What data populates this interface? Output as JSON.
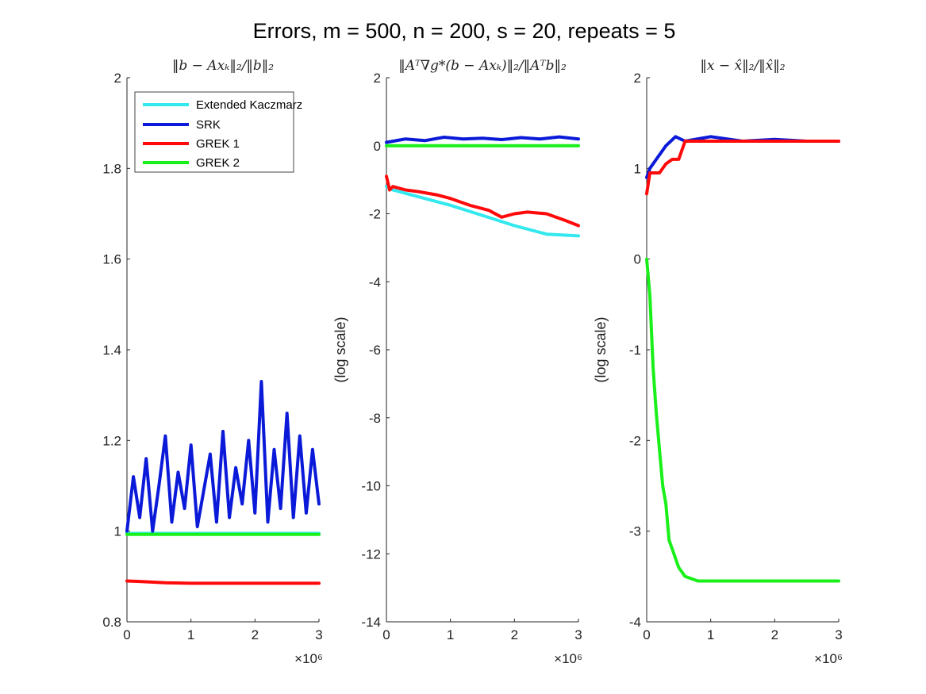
{
  "figure": {
    "title": "Errors, m = 500, n = 200, s = 20, repeats = 5"
  },
  "legend": {
    "location": "top-left of first panel",
    "entries": [
      {
        "label": "Extended Kaczmarz",
        "color": "#33e8ee"
      },
      {
        "label": "SRK",
        "color": "#0a1ad8"
      },
      {
        "label": "GREK 1",
        "color": "#ff0a0a"
      },
      {
        "label": "GREK 2",
        "color": "#19f019"
      }
    ]
  },
  "colors": {
    "ek": "#33e8ee",
    "srk": "#0a1ad8",
    "grek1": "#ff0a0a",
    "grek2": "#19f019"
  },
  "chart_data": [
    {
      "type": "line",
      "title": "‖b − Axₖ‖₂/‖b‖₂",
      "xlabel": "",
      "ylabel": "",
      "x_exponent": "×10⁶",
      "xlim": [
        0,
        3
      ],
      "ylim": [
        0.8,
        2
      ],
      "xticks": [
        "0",
        "1",
        "2",
        "3"
      ],
      "yticks": [
        "0.8",
        "1",
        "1.2",
        "1.4",
        "1.6",
        "1.8",
        "2"
      ],
      "grid": false,
      "series": [
        {
          "name": "GREK 1",
          "x": [
            0,
            0.2,
            0.6,
            1.0,
            2.0,
            3.0
          ],
          "y": [
            0.89,
            0.889,
            0.886,
            0.885,
            0.885,
            0.885
          ]
        },
        {
          "name": "Extended Kaczmarz",
          "x": [
            0,
            3.0
          ],
          "y": [
            0.995,
            0.995
          ]
        },
        {
          "name": "SRK",
          "x": [
            0,
            0.1,
            0.2,
            0.3,
            0.4,
            0.5,
            0.6,
            0.7,
            0.8,
            0.9,
            1.0,
            1.1,
            1.2,
            1.3,
            1.4,
            1.5,
            1.6,
            1.7,
            1.8,
            1.9,
            2.0,
            2.1,
            2.2,
            2.3,
            2.4,
            2.5,
            2.6,
            2.7,
            2.8,
            2.9,
            3.0
          ],
          "y": [
            1.0,
            1.12,
            1.03,
            1.16,
            1.0,
            1.1,
            1.21,
            1.02,
            1.13,
            1.05,
            1.19,
            1.01,
            1.09,
            1.17,
            1.02,
            1.22,
            1.03,
            1.14,
            1.06,
            1.2,
            1.04,
            1.33,
            1.02,
            1.18,
            1.05,
            1.26,
            1.03,
            1.21,
            1.04,
            1.18,
            1.06
          ]
        },
        {
          "name": "GREK 2",
          "x": [
            0,
            3.0
          ],
          "y": [
            0.993,
            0.993
          ]
        }
      ]
    },
    {
      "type": "line",
      "title": "‖Aᵀ∇g*(b − Axₖ)‖₂/‖Aᵀb‖₂",
      "xlabel": "",
      "ylabel": "(log scale)",
      "x_exponent": "×10⁶",
      "xlim": [
        0,
        3
      ],
      "ylim": [
        -14,
        2
      ],
      "xticks": [
        "0",
        "1",
        "2",
        "3"
      ],
      "yticks": [
        "-14",
        "-12",
        "-10",
        "-8",
        "-6",
        "-4",
        "-2",
        "0",
        "2"
      ],
      "grid": false,
      "series": [
        {
          "name": "Extended Kaczmarz",
          "x": [
            0,
            0.1,
            0.2,
            0.5,
            1.0,
            1.5,
            2.0,
            2.5,
            3.0
          ],
          "y": [
            -1.2,
            -1.3,
            -1.35,
            -1.5,
            -1.75,
            -2.05,
            -2.35,
            -2.6,
            -2.65
          ]
        },
        {
          "name": "GREK 1",
          "x": [
            0,
            0.05,
            0.1,
            0.3,
            0.5,
            0.8,
            1.0,
            1.3,
            1.6,
            1.8,
            2.0,
            2.2,
            2.5,
            2.8,
            3.0
          ],
          "y": [
            -0.9,
            -1.3,
            -1.2,
            -1.3,
            -1.35,
            -1.45,
            -1.55,
            -1.75,
            -1.9,
            -2.1,
            -2.0,
            -1.95,
            -2.0,
            -2.2,
            -2.35
          ]
        },
        {
          "name": "SRK",
          "x": [
            0,
            0.3,
            0.6,
            0.9,
            1.2,
            1.5,
            1.8,
            2.1,
            2.4,
            2.7,
            3.0
          ],
          "y": [
            0.1,
            0.2,
            0.15,
            0.25,
            0.2,
            0.22,
            0.18,
            0.24,
            0.2,
            0.26,
            0.2
          ]
        },
        {
          "name": "GREK 2",
          "x": [
            0,
            3.0
          ],
          "y": [
            0.0,
            0.0
          ]
        }
      ]
    },
    {
      "type": "line",
      "title": "‖x − x̂‖₂/‖x̂‖₂",
      "xlabel": "",
      "ylabel": "(log scale)",
      "x_exponent": "×10⁶",
      "xlim": [
        0,
        3
      ],
      "ylim": [
        -4,
        2
      ],
      "xticks": [
        "0",
        "1",
        "2",
        "3"
      ],
      "yticks": [
        "-4",
        "-3",
        "-2",
        "-1",
        "0",
        "1",
        "2"
      ],
      "grid": false,
      "series": [
        {
          "name": "SRK",
          "x": [
            0,
            0.05,
            0.15,
            0.3,
            0.45,
            0.6,
            1.0,
            1.5,
            2.0,
            2.5,
            3.0
          ],
          "y": [
            0.9,
            1.0,
            1.1,
            1.25,
            1.35,
            1.3,
            1.35,
            1.3,
            1.32,
            1.3,
            1.3
          ]
        },
        {
          "name": "GREK 1",
          "x": [
            0,
            0.05,
            0.1,
            0.2,
            0.3,
            0.4,
            0.5,
            0.6,
            1.0,
            2.0,
            3.0
          ],
          "y": [
            0.72,
            0.95,
            0.95,
            0.95,
            1.05,
            1.1,
            1.1,
            1.3,
            1.3,
            1.3,
            1.3
          ]
        },
        {
          "name": "GREK 2",
          "x": [
            0,
            0.05,
            0.1,
            0.15,
            0.2,
            0.25,
            0.3,
            0.35,
            0.4,
            0.5,
            0.6,
            0.8,
            1.0,
            1.5,
            2.0,
            2.5,
            3.0
          ],
          "y": [
            0.0,
            -0.4,
            -1.2,
            -1.7,
            -2.1,
            -2.5,
            -2.7,
            -3.1,
            -3.2,
            -3.4,
            -3.5,
            -3.55,
            -3.55,
            -3.55,
            -3.55,
            -3.55,
            -3.55
          ]
        }
      ]
    }
  ]
}
